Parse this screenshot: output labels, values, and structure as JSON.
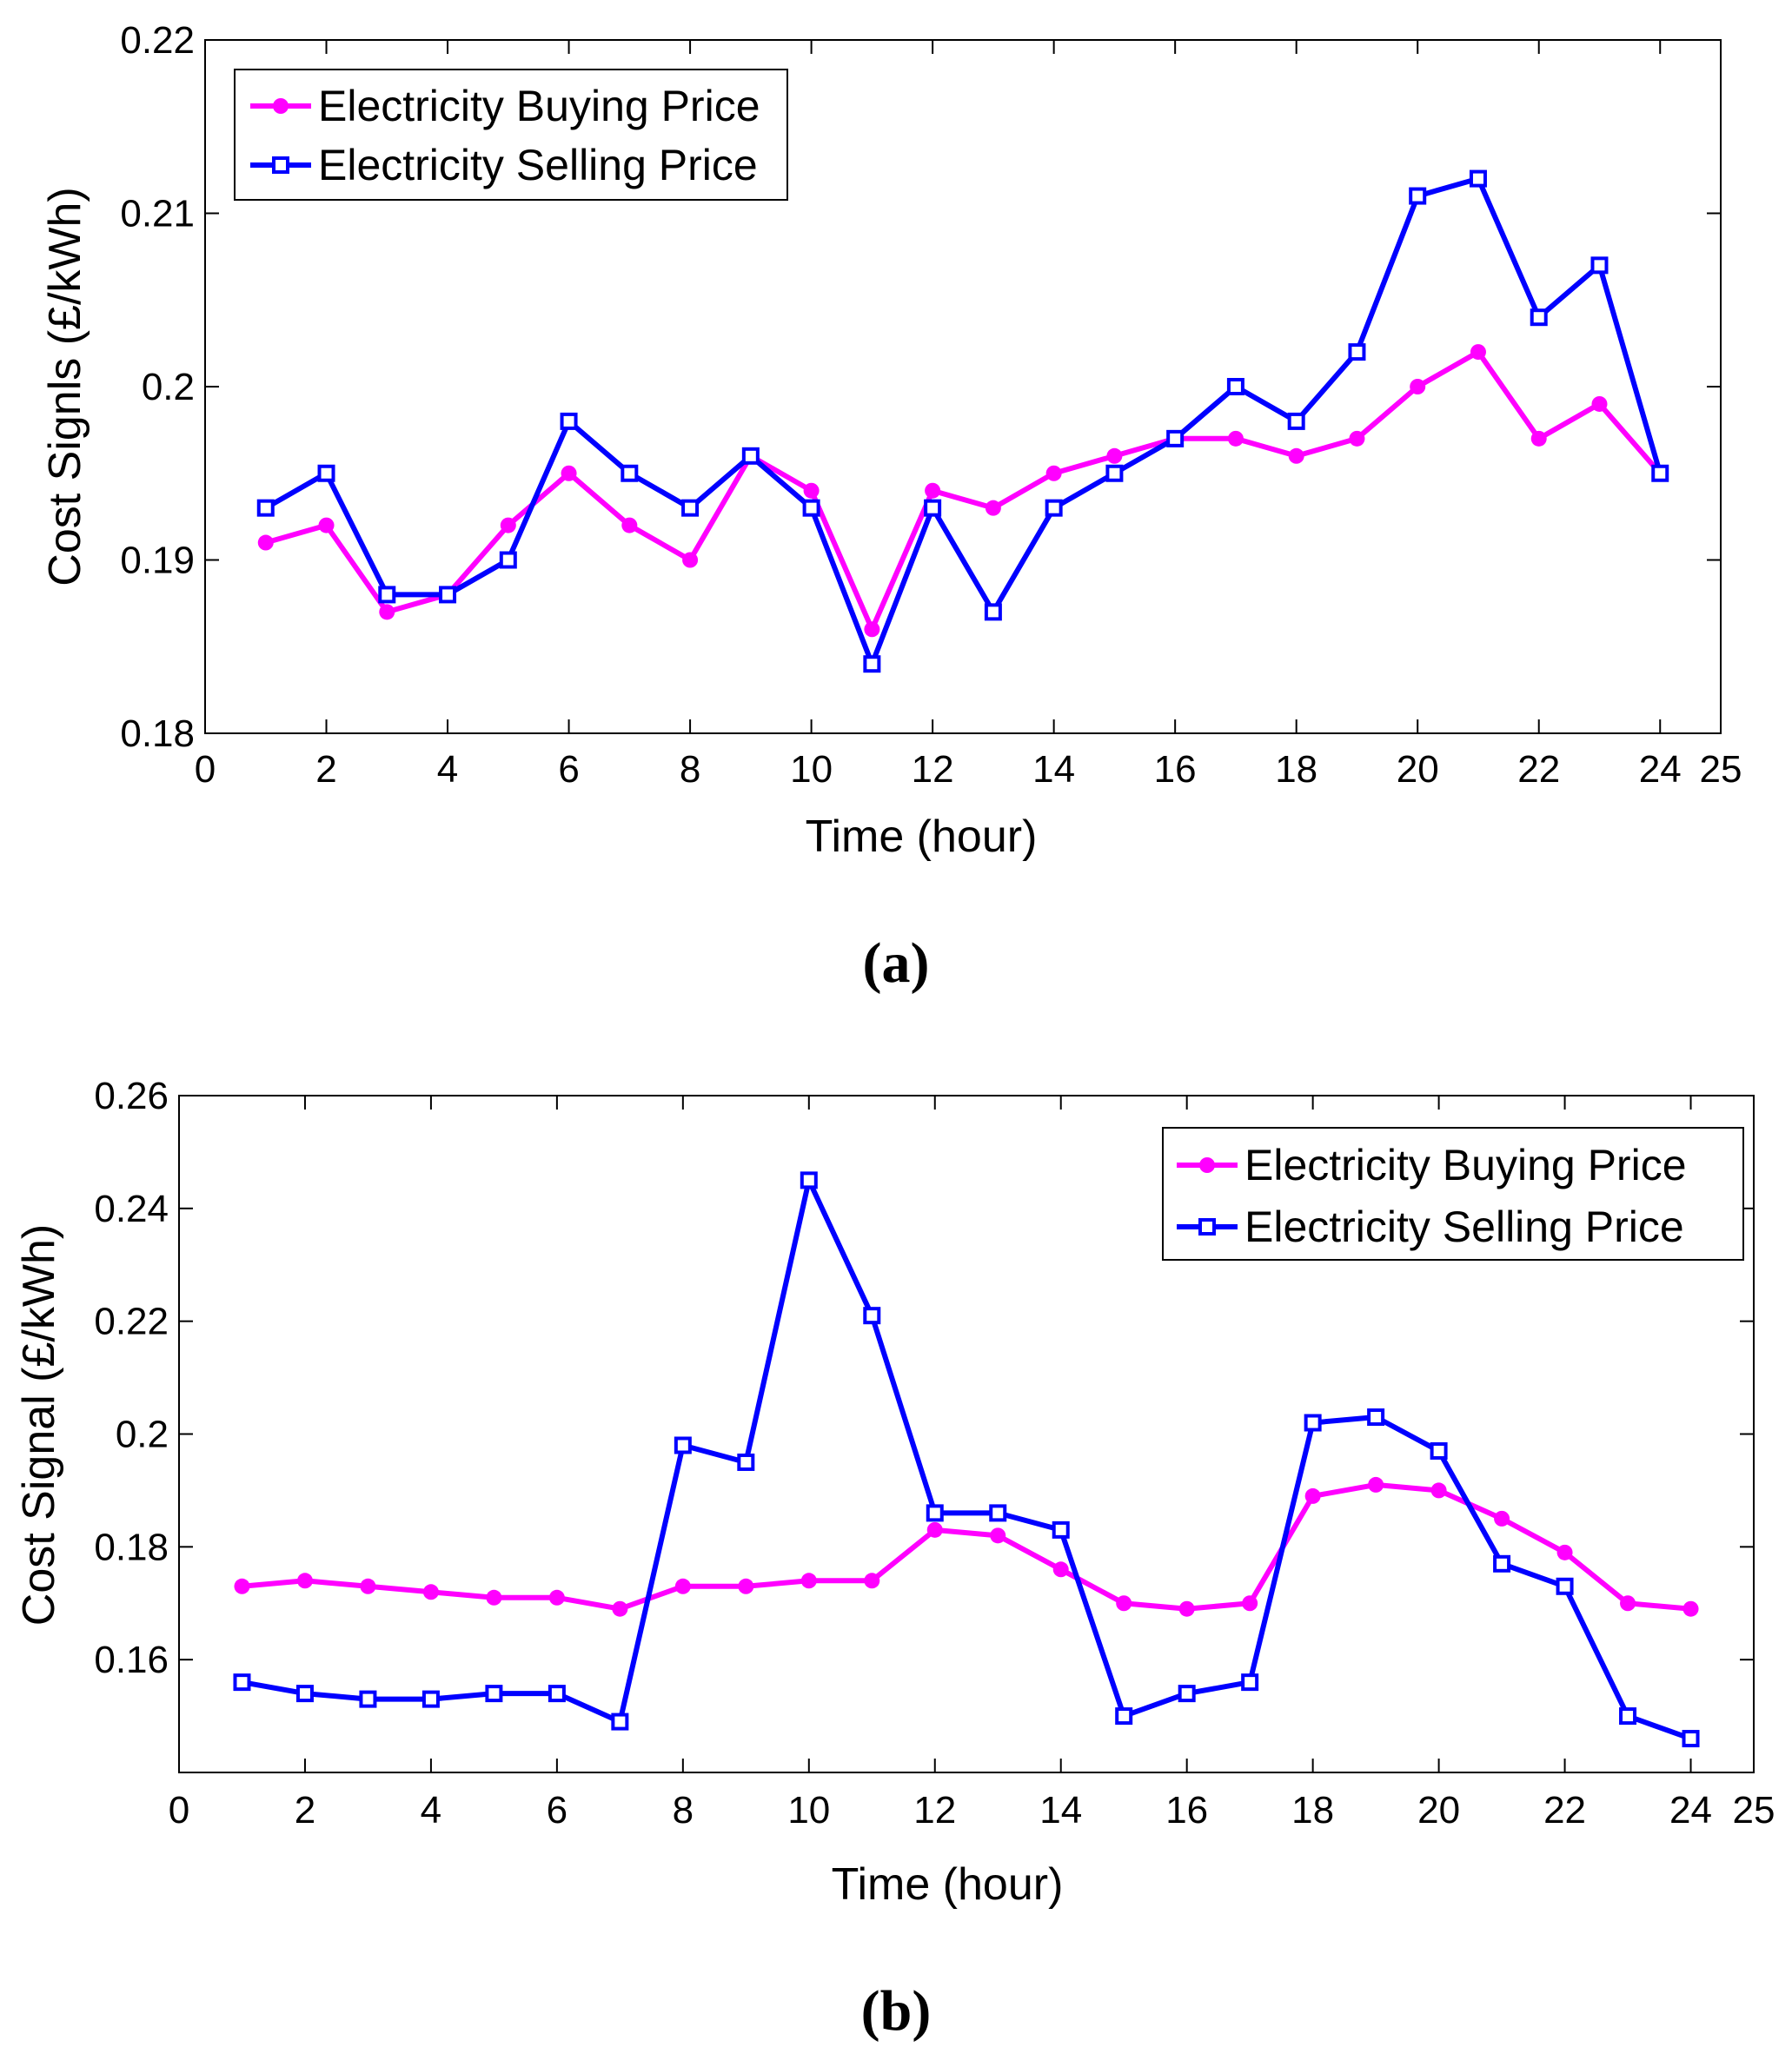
{
  "chart_data": [
    {
      "type": "line",
      "panel_label": "a",
      "caption": "(a)",
      "xlabel": "Time (hour)",
      "ylabel": "Cost Signls (£/kWh)",
      "xlim": [
        0,
        25
      ],
      "ylim": [
        0.18,
        0.22
      ],
      "xticks": [
        0,
        2,
        4,
        6,
        8,
        10,
        12,
        14,
        16,
        18,
        20,
        22,
        24,
        25
      ],
      "yticks": [
        0.18,
        0.19,
        0.2,
        0.21,
        0.22
      ],
      "ytick_labels": [
        "0.18",
        "0.19",
        "0.2",
        "0.21",
        "0.22"
      ],
      "legend_position": "top-left",
      "x": [
        1,
        2,
        3,
        4,
        5,
        6,
        7,
        8,
        9,
        10,
        11,
        12,
        13,
        14,
        15,
        16,
        17,
        18,
        19,
        20,
        21,
        22,
        23,
        24
      ],
      "series": [
        {
          "name": "Electricity Buying Price",
          "color": "#ff00ff",
          "marker": "circle",
          "values": [
            0.191,
            0.192,
            0.187,
            0.188,
            0.192,
            0.195,
            0.192,
            0.19,
            0.196,
            0.194,
            0.186,
            0.194,
            0.193,
            0.195,
            0.196,
            0.197,
            0.197,
            0.196,
            0.197,
            0.2,
            0.202,
            0.197,
            0.199,
            0.195
          ]
        },
        {
          "name": "Electricity Selling Price",
          "color": "#0000ff",
          "marker": "square",
          "values": [
            0.193,
            0.195,
            0.188,
            0.188,
            0.19,
            0.198,
            0.195,
            0.193,
            0.196,
            0.193,
            0.184,
            0.193,
            0.187,
            0.193,
            0.195,
            0.197,
            0.2,
            0.198,
            0.202,
            0.211,
            0.212,
            0.204,
            0.207,
            0.195
          ]
        }
      ]
    },
    {
      "type": "line",
      "panel_label": "b",
      "caption": "(b)",
      "xlabel": "Time (hour)",
      "ylabel": "Cost Signal (£/kWh)",
      "xlim": [
        0,
        25
      ],
      "ylim": [
        0.14,
        0.26
      ],
      "xticks": [
        0,
        2,
        4,
        6,
        8,
        10,
        12,
        14,
        16,
        18,
        20,
        22,
        24,
        25
      ],
      "yticks": [
        0.16,
        0.18,
        0.2,
        0.22,
        0.24,
        0.26
      ],
      "ytick_labels": [
        "0.16",
        "0.18",
        "0.2",
        "0.22",
        "0.24",
        "0.26"
      ],
      "legend_position": "top-right",
      "x": [
        1,
        2,
        3,
        4,
        5,
        6,
        7,
        8,
        9,
        10,
        11,
        12,
        13,
        14,
        15,
        16,
        17,
        18,
        19,
        20,
        21,
        22,
        23,
        24
      ],
      "series": [
        {
          "name": "Electricity Buying Price",
          "color": "#ff00ff",
          "marker": "circle",
          "values": [
            0.173,
            0.174,
            0.173,
            0.172,
            0.171,
            0.171,
            0.169,
            0.173,
            0.173,
            0.174,
            0.174,
            0.183,
            0.182,
            0.176,
            0.17,
            0.169,
            0.17,
            0.189,
            0.191,
            0.19,
            0.185,
            0.179,
            0.17,
            0.169
          ]
        },
        {
          "name": "Electricity Selling Price",
          "color": "#0000ff",
          "marker": "square",
          "values": [
            0.156,
            0.154,
            0.153,
            0.153,
            0.154,
            0.154,
            0.149,
            0.198,
            0.195,
            0.245,
            0.221,
            0.186,
            0.186,
            0.183,
            0.15,
            0.154,
            0.156,
            0.202,
            0.203,
            0.197,
            0.177,
            0.173,
            0.15,
            0.146
          ]
        }
      ]
    }
  ]
}
